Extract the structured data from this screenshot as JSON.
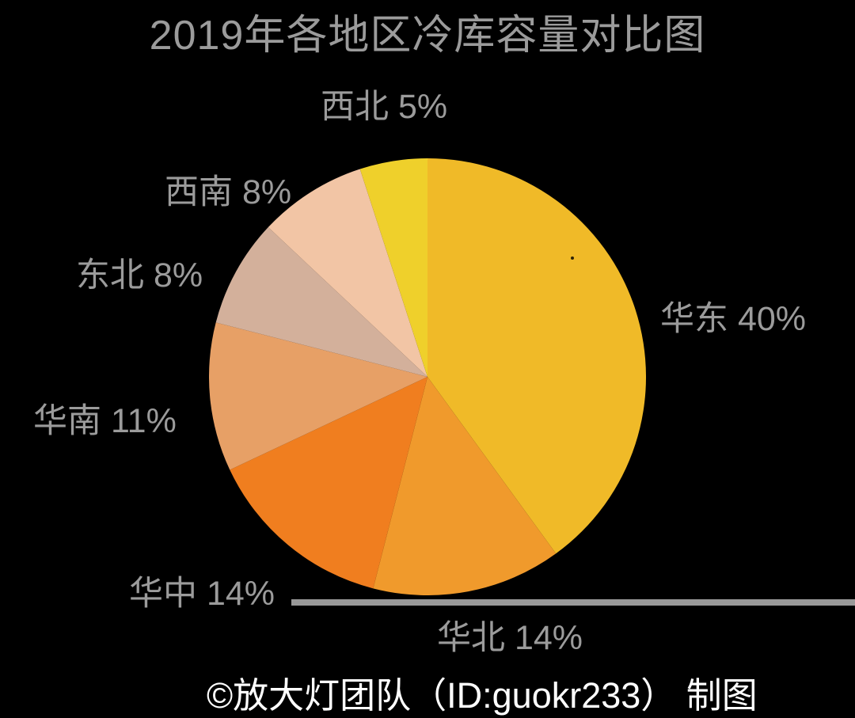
{
  "page": {
    "background": "#000000",
    "title": "2019年各地区冷库容量对比图",
    "title_color": "#9B9B9B",
    "credit": "©放大灯团队（ID:guokr233） 制图",
    "credit_color": "#FFFFFF",
    "label_color": "#9B9B9B"
  },
  "chart_data": {
    "type": "pie",
    "title": "2019年各地区冷库容量对比图",
    "unit": "%",
    "start_angle_deg": 0,
    "direction": "clockwise",
    "legend": "none",
    "labels_style": "outside-gray-text",
    "slices": [
      {
        "id": "huadong",
        "name": "华东",
        "value": 40,
        "label": "华东 40%",
        "color": "#F0BA28"
      },
      {
        "id": "huabei",
        "name": "华北",
        "value": 14,
        "label": "华北 14%",
        "color": "#F09A2C"
      },
      {
        "id": "huazhong",
        "name": "华中",
        "value": 14,
        "label": "华中 14%",
        "color": "#F07E1F"
      },
      {
        "id": "huanan",
        "name": "华南",
        "value": 11,
        "label": "华南 11%",
        "color": "#E7A066"
      },
      {
        "id": "dongbei",
        "name": "东北",
        "value": 8,
        "label": "东北 8%",
        "color": "#D3B09B"
      },
      {
        "id": "xinan",
        "name": "西南",
        "value": 8,
        "label": "西南 8%",
        "color": "#F2C5A5"
      },
      {
        "id": "xibei",
        "name": "西北",
        "value": 5,
        "label": "西北 5%",
        "color": "#EFD02B"
      }
    ]
  }
}
